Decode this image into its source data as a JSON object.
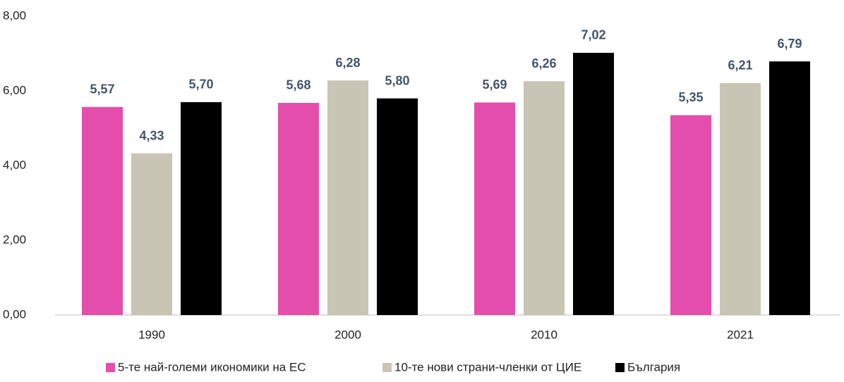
{
  "chart_data": {
    "type": "bar",
    "categories": [
      "1990",
      "2000",
      "2010",
      "2021"
    ],
    "series": [
      {
        "name": "5-те най-големи икономики на ЕС",
        "color": "#e54dad",
        "values": [
          5.57,
          5.68,
          5.69,
          5.35
        ],
        "value_labels": [
          "5,57",
          "5,68",
          "5,69",
          "5,35"
        ]
      },
      {
        "name": "10-те нови страни-членки от ЦИЕ",
        "color": "#c9c5b4",
        "values": [
          4.33,
          6.28,
          6.26,
          6.21
        ],
        "value_labels": [
          "4,33",
          "6,28",
          "6,26",
          "6,21"
        ]
      },
      {
        "name": "България",
        "color": "#000000",
        "values": [
          5.7,
          5.8,
          7.02,
          6.79
        ],
        "value_labels": [
          "5,70",
          "5,80",
          "7,02",
          "6,79"
        ]
      }
    ],
    "ylim": [
      0,
      8
    ],
    "yticks": [
      {
        "value": 0,
        "label": "0,00"
      },
      {
        "value": 2,
        "label": "2,00"
      },
      {
        "value": 4,
        "label": "4,00"
      },
      {
        "value": 6,
        "label": "6,00"
      },
      {
        "value": 8,
        "label": "8,00"
      }
    ],
    "legend": "bottom"
  }
}
